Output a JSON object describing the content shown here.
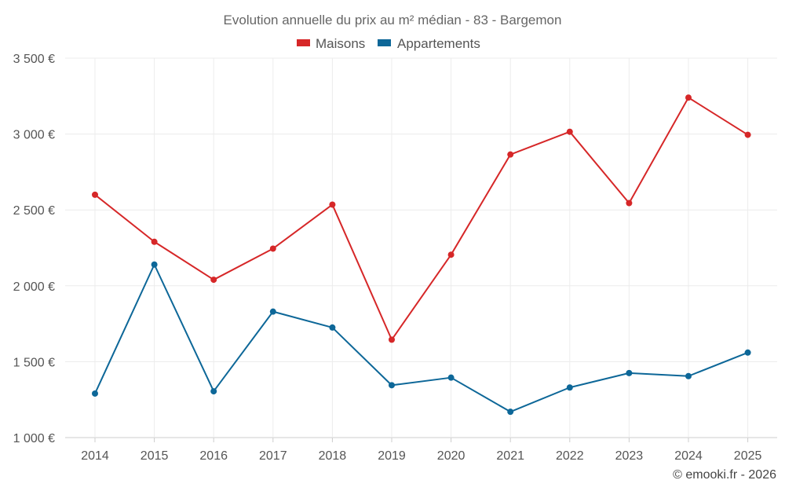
{
  "chart_data": {
    "type": "line",
    "title": "Evolution annuelle du prix au m² médian - 83 - Bargemon",
    "categories": [
      "2014",
      "2015",
      "2016",
      "2017",
      "2018",
      "2019",
      "2020",
      "2021",
      "2022",
      "2023",
      "2024",
      "2025"
    ],
    "series": [
      {
        "name": "Maisons",
        "color": "#d62728",
        "values": [
          2600,
          2290,
          2040,
          2245,
          2535,
          1645,
          2205,
          2865,
          3015,
          2545,
          3240,
          2995
        ]
      },
      {
        "name": "Appartements",
        "color": "#0d6798",
        "values": [
          1290,
          2140,
          1305,
          1830,
          1725,
          1345,
          1395,
          1170,
          1330,
          1425,
          1405,
          1560
        ]
      }
    ],
    "ylim": [
      1000,
      3500
    ],
    "yticks": [
      1000,
      1500,
      2000,
      2500,
      3000,
      3500
    ],
    "ytick_labels": [
      "1 000 €",
      "1 500 €",
      "2 000 €",
      "2 500 €",
      "3 000 €",
      "3 500 €"
    ],
    "xlabel": "",
    "ylabel": "",
    "grid": true,
    "legend_position": "top-center"
  },
  "credit": "© emooki.fr - 2026"
}
